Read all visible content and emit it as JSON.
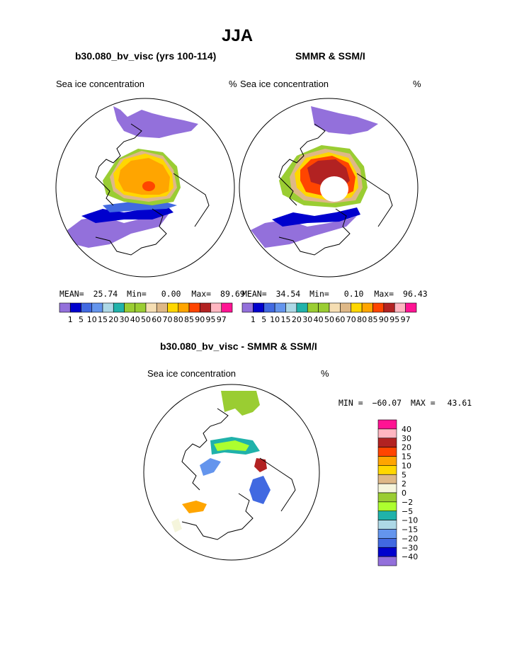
{
  "page": {
    "title": "JJA",
    "diff_title": "b30.080_bv_visc - SMMR & SSM/I"
  },
  "units_label": "%",
  "field_label": "Sea ice concentration",
  "colors": {
    "pos": [
      "#9370DB",
      "#0000CD",
      "#4169E1",
      "#6495ED",
      "#ADD8E6",
      "#20B2AA",
      "#9ACD32",
      "#9ACD32",
      "#F5DEB3",
      "#DEB887",
      "#FFD700",
      "#FFA500",
      "#FF4500",
      "#B22222",
      "#FFB6C1",
      "#FF1493"
    ],
    "diff": [
      "#9370DB",
      "#0000CD",
      "#4169E1",
      "#6495ED",
      "#ADD8E6",
      "#20B2AA",
      "#ADFF2F",
      "#9ACD32",
      "#F5F5DC",
      "#DEB887",
      "#FFD700",
      "#FFA500",
      "#FF4500",
      "#B22222",
      "#FFB6C1",
      "#FF1493"
    ]
  },
  "chart_data": [
    {
      "type": "heatmap",
      "title": "b30.080_bv_visc (yrs 100-114)",
      "label_left": "Sea ice concentration",
      "label_right": "%",
      "stats": {
        "mean_label": "MEAN=",
        "mean": "25.74",
        "min_label": "Min=",
        "min": "0.00",
        "max_label": "Max=",
        "max": "89.69"
      },
      "colorbar_labels": [
        "1",
        "5",
        "10",
        "15",
        "20",
        "30",
        "40",
        "50",
        "60",
        "70",
        "80",
        "85",
        "90",
        "95",
        "97"
      ]
    },
    {
      "type": "heatmap",
      "title": "SMMR & SSM/I",
      "label_left": "Sea ice concentration",
      "label_right": "%",
      "stats": {
        "mean_label": "MEAN=",
        "mean": "34.54",
        "min_label": "Min=",
        "min": "0.10",
        "max_label": "Max=",
        "max": "96.43"
      },
      "colorbar_labels": [
        "1",
        "5",
        "10",
        "15",
        "20",
        "30",
        "40",
        "50",
        "60",
        "70",
        "80",
        "85",
        "90",
        "95",
        "97"
      ]
    },
    {
      "type": "heatmap",
      "title": "b30.080_bv_visc - SMMR & SSM/I",
      "label_left": "Sea ice concentration",
      "label_right": "%",
      "minmax": {
        "min_label": "MIN =",
        "min": "−60.07",
        "max_label": "MAX =",
        "max": "43.61"
      },
      "colorbar_labels": [
        "40",
        "30",
        "20",
        "15",
        "10",
        "5",
        "2",
        "0",
        "−2",
        "−5",
        "−10",
        "−15",
        "−20",
        "−30",
        "−40"
      ]
    }
  ]
}
